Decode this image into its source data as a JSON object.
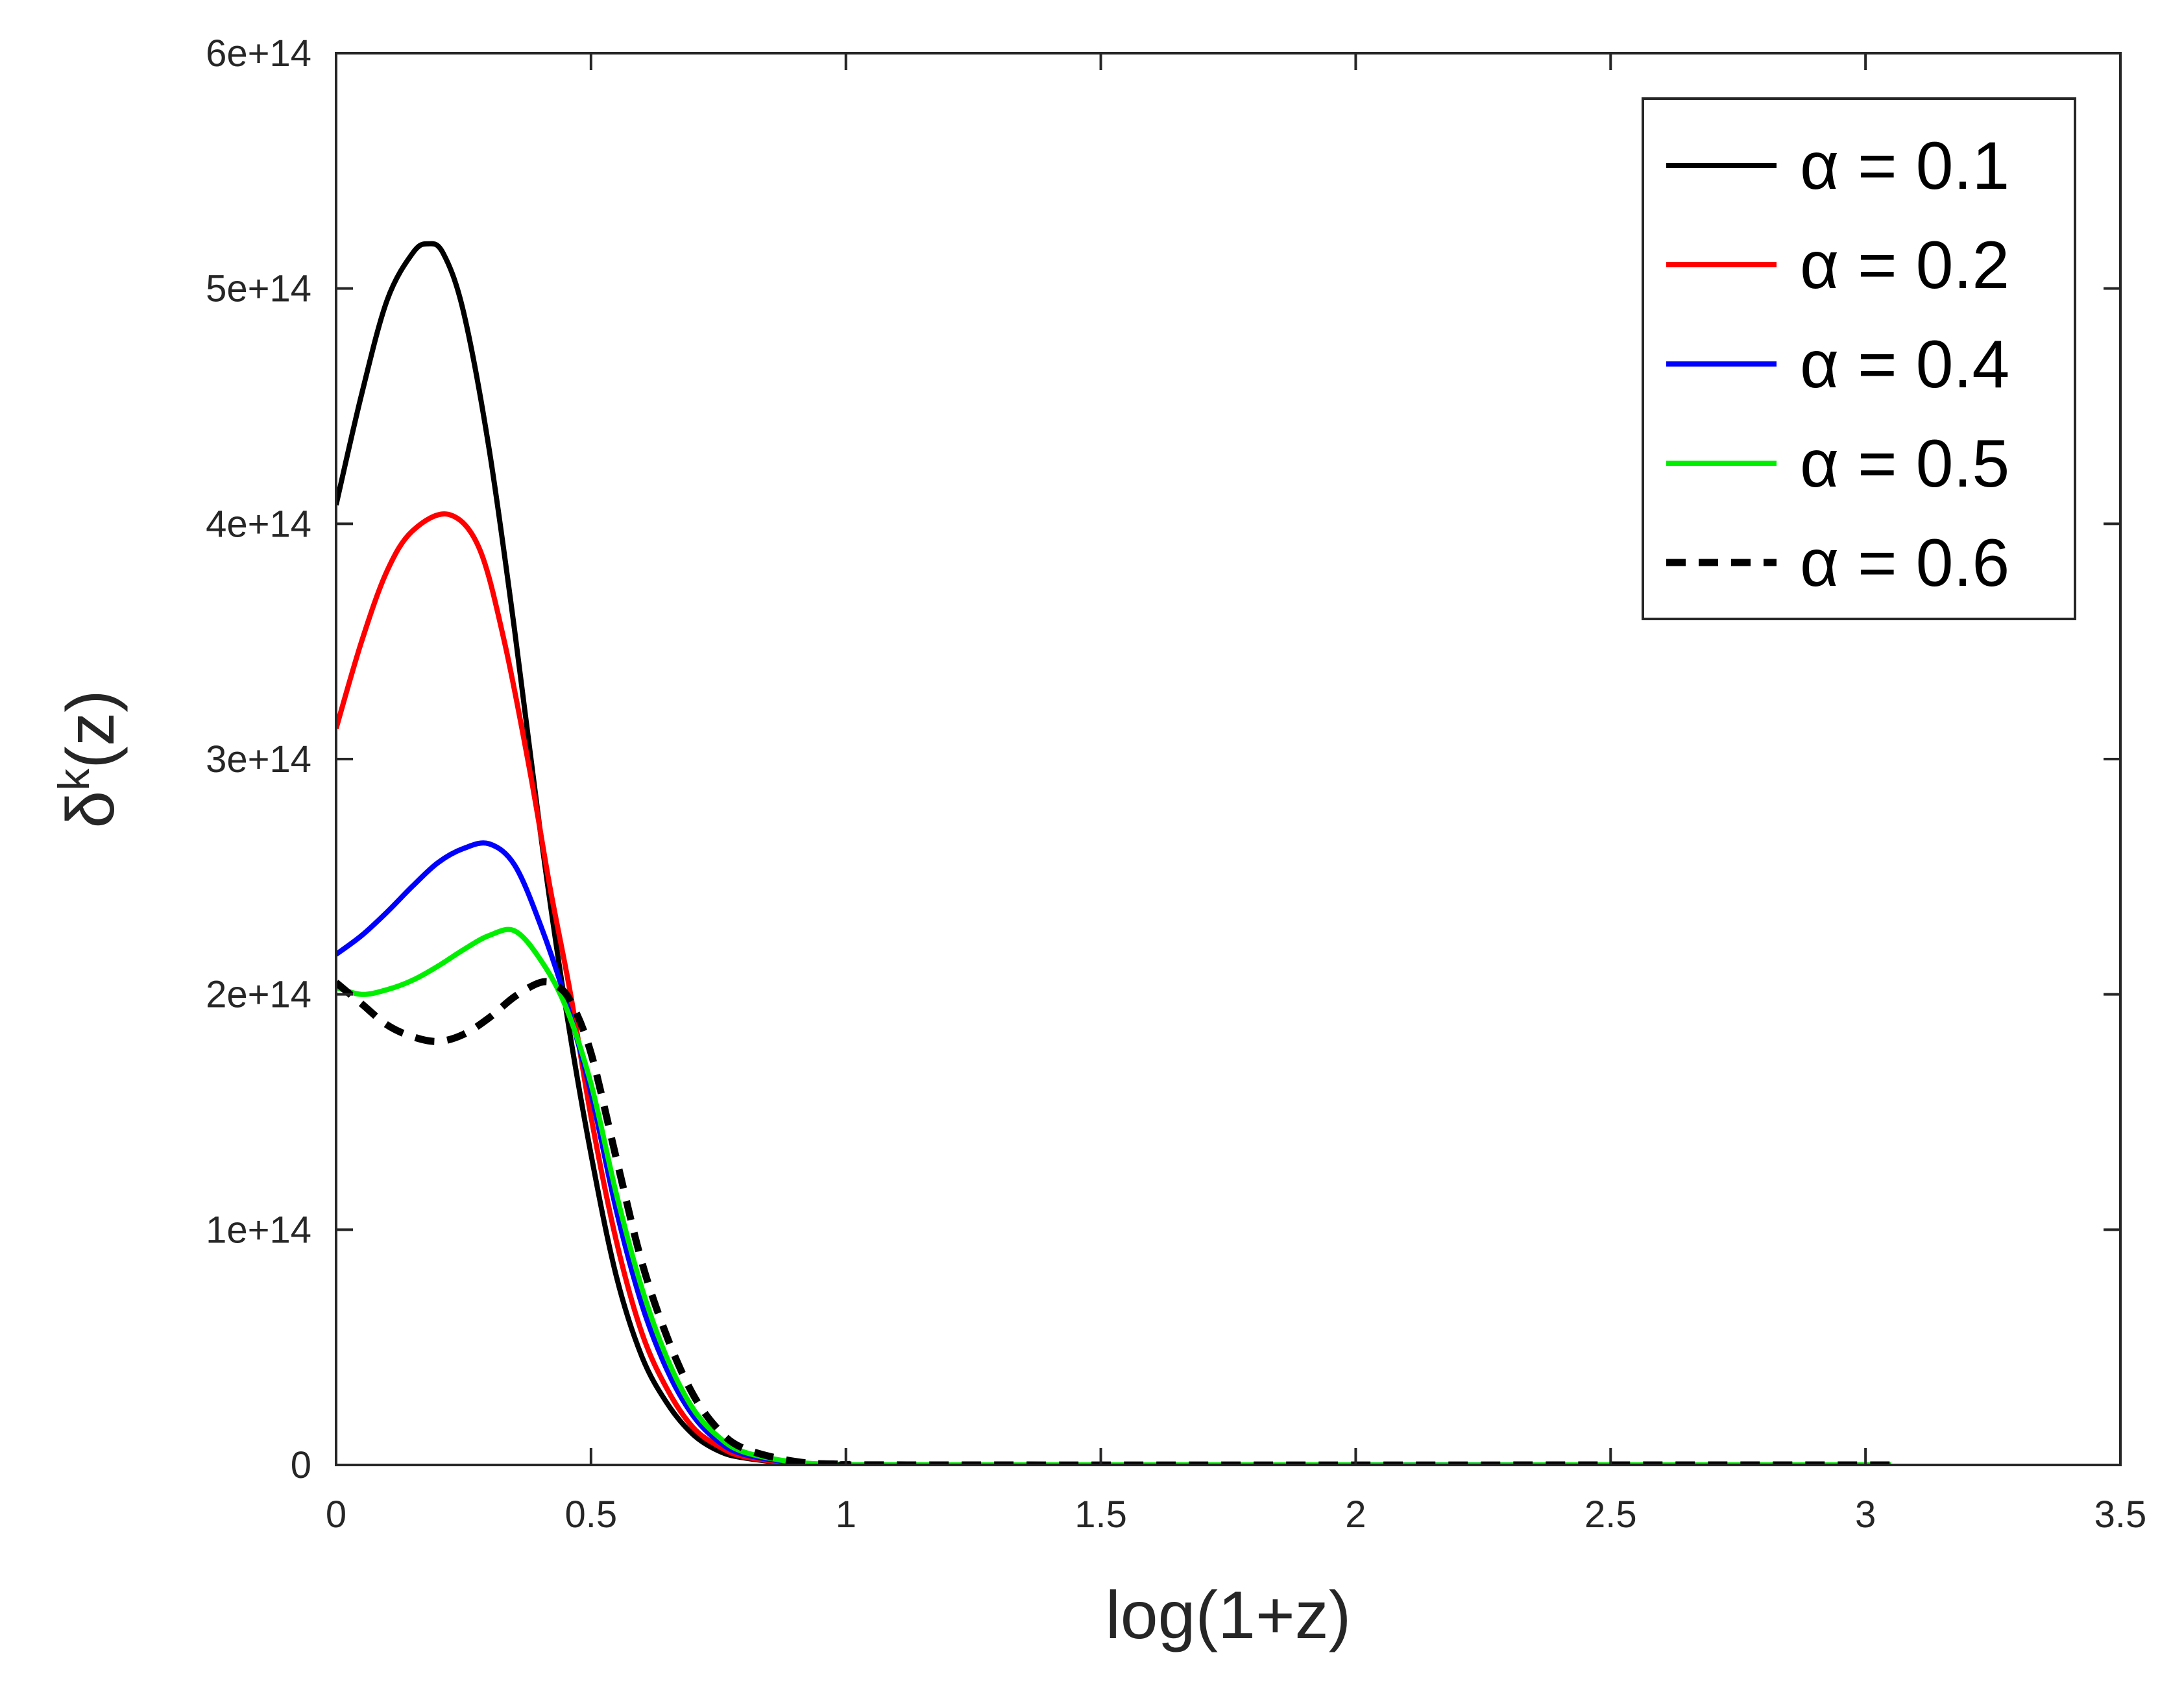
{
  "chart_data": {
    "type": "line",
    "xlabel": "log(1+z)",
    "ylabel": {
      "base": "δ",
      "superscript": "k",
      "suffix": "(z)"
    },
    "xlim": [
      0,
      3.5
    ],
    "ylim": [
      0,
      600000000000000.0
    ],
    "x_ticks": [
      0,
      0.5,
      1,
      1.5,
      2,
      2.5,
      3,
      3.5
    ],
    "x_tick_labels": [
      "0",
      "0.5",
      "1",
      "1.5",
      "2",
      "2.5",
      "3",
      "3.5"
    ],
    "y_ticks": [
      0,
      100000000000000.0,
      200000000000000.0,
      300000000000000.0,
      400000000000000.0,
      500000000000000.0,
      600000000000000.0
    ],
    "y_tick_labels": [
      "0",
      "1e+14",
      "2e+14",
      "3e+14",
      "4e+14",
      "5e+14",
      "6e+14"
    ],
    "grid": false,
    "legend_position": "top-right",
    "series": [
      {
        "name": "α = 0.1",
        "color": "#000000",
        "dash": "solid",
        "points": [
          [
            0,
            408000000000000.0
          ],
          [
            0.05,
            455000000000000.0
          ],
          [
            0.1,
            495000000000000.0
          ],
          [
            0.15,
            515000000000000.0
          ],
          [
            0.18,
            519000000000000.0
          ],
          [
            0.21,
            515000000000000.0
          ],
          [
            0.25,
            490000000000000.0
          ],
          [
            0.3,
            432000000000000.0
          ],
          [
            0.35,
            355000000000000.0
          ],
          [
            0.4,
            270000000000000.0
          ],
          [
            0.45,
            195000000000000.0
          ],
          [
            0.5,
            132000000000000.0
          ],
          [
            0.55,
            80000000000000.0
          ],
          [
            0.6,
            46000000000000.0
          ],
          [
            0.65,
            26000000000000.0
          ],
          [
            0.7,
            13000000000000.0
          ],
          [
            0.75,
            6000000000000.0
          ],
          [
            0.8,
            3000000000000.0
          ],
          [
            0.9,
            600000000000.0
          ],
          [
            1.0,
            100000000000.0
          ],
          [
            1.2,
            0
          ],
          [
            3.05,
            0
          ]
        ]
      },
      {
        "name": "α = 0.2",
        "color": "#ff0000",
        "dash": "solid",
        "points": [
          [
            0,
            313000000000000.0
          ],
          [
            0.05,
            350000000000000.0
          ],
          [
            0.1,
            380000000000000.0
          ],
          [
            0.15,
            397000000000000.0
          ],
          [
            0.22,
            404000000000000.0
          ],
          [
            0.28,
            390000000000000.0
          ],
          [
            0.33,
            350000000000000.0
          ],
          [
            0.38,
            295000000000000.0
          ],
          [
            0.42,
            245000000000000.0
          ],
          [
            0.46,
            200000000000000.0
          ],
          [
            0.5,
            148000000000000.0
          ],
          [
            0.55,
            95000000000000.0
          ],
          [
            0.6,
            56000000000000.0
          ],
          [
            0.65,
            32000000000000.0
          ],
          [
            0.7,
            16000000000000.0
          ],
          [
            0.75,
            8000000000000.0
          ],
          [
            0.8,
            3500000000000.0
          ],
          [
            0.9,
            800000000000.0
          ],
          [
            1.0,
            150000000000.0
          ],
          [
            1.2,
            0
          ],
          [
            3.05,
            0
          ]
        ]
      },
      {
        "name": "α = 0.4",
        "color": "#0000ff",
        "dash": "solid",
        "points": [
          [
            0,
            217000000000000.0
          ],
          [
            0.05,
            225000000000000.0
          ],
          [
            0.1,
            235000000000000.0
          ],
          [
            0.15,
            246000000000000.0
          ],
          [
            0.2,
            256000000000000.0
          ],
          [
            0.25,
            262000000000000.0
          ],
          [
            0.3,
            264000000000000.0
          ],
          [
            0.35,
            255000000000000.0
          ],
          [
            0.4,
            230000000000000.0
          ],
          [
            0.45,
            198000000000000.0
          ],
          [
            0.5,
            158000000000000.0
          ],
          [
            0.55,
            108000000000000.0
          ],
          [
            0.6,
            68000000000000.0
          ],
          [
            0.65,
            40000000000000.0
          ],
          [
            0.7,
            21000000000000.0
          ],
          [
            0.75,
            10000000000000.0
          ],
          [
            0.8,
            4500000000000.0
          ],
          [
            0.9,
            1000000000000.0
          ],
          [
            1.0,
            200000000000.0
          ],
          [
            1.2,
            0
          ],
          [
            3.05,
            0
          ]
        ]
      },
      {
        "name": "α = 0.5",
        "color": "#00ee00",
        "dash": "solid",
        "points": [
          [
            0,
            203000000000000.0
          ],
          [
            0.05,
            200000000000000.0
          ],
          [
            0.1,
            202000000000000.0
          ],
          [
            0.15,
            206000000000000.0
          ],
          [
            0.2,
            212000000000000.0
          ],
          [
            0.25,
            219000000000000.0
          ],
          [
            0.3,
            225000000000000.0
          ],
          [
            0.35,
            227000000000000.0
          ],
          [
            0.4,
            215000000000000.0
          ],
          [
            0.45,
            195000000000000.0
          ],
          [
            0.5,
            162000000000000.0
          ],
          [
            0.55,
            115000000000000.0
          ],
          [
            0.6,
            75000000000000.0
          ],
          [
            0.65,
            45000000000000.0
          ],
          [
            0.7,
            24000000000000.0
          ],
          [
            0.75,
            12000000000000.0
          ],
          [
            0.8,
            5500000000000.0
          ],
          [
            0.9,
            1200000000000.0
          ],
          [
            1.0,
            250000000000.0
          ],
          [
            1.2,
            0
          ],
          [
            3.05,
            0
          ]
        ]
      },
      {
        "name": "α = 0.6",
        "color": "#000000",
        "dash": "dashed",
        "points": [
          [
            0,
            205000000000000.0
          ],
          [
            0.05,
            196000000000000.0
          ],
          [
            0.1,
            187000000000000.0
          ],
          [
            0.15,
            182000000000000.0
          ],
          [
            0.2,
            180000000000000.0
          ],
          [
            0.25,
            183000000000000.0
          ],
          [
            0.3,
            190000000000000.0
          ],
          [
            0.35,
            199000000000000.0
          ],
          [
            0.4,
            205000000000000.0
          ],
          [
            0.43,
            204000000000000.0
          ],
          [
            0.46,
            197000000000000.0
          ],
          [
            0.5,
            175000000000000.0
          ],
          [
            0.55,
            130000000000000.0
          ],
          [
            0.6,
            86000000000000.0
          ],
          [
            0.65,
            54000000000000.0
          ],
          [
            0.7,
            30000000000000.0
          ],
          [
            0.75,
            15000000000000.0
          ],
          [
            0.8,
            7000000000000.0
          ],
          [
            0.9,
            1500000000000.0
          ],
          [
            1.0,
            300000000000.0
          ],
          [
            1.2,
            0
          ],
          [
            3.05,
            0
          ]
        ]
      }
    ]
  }
}
